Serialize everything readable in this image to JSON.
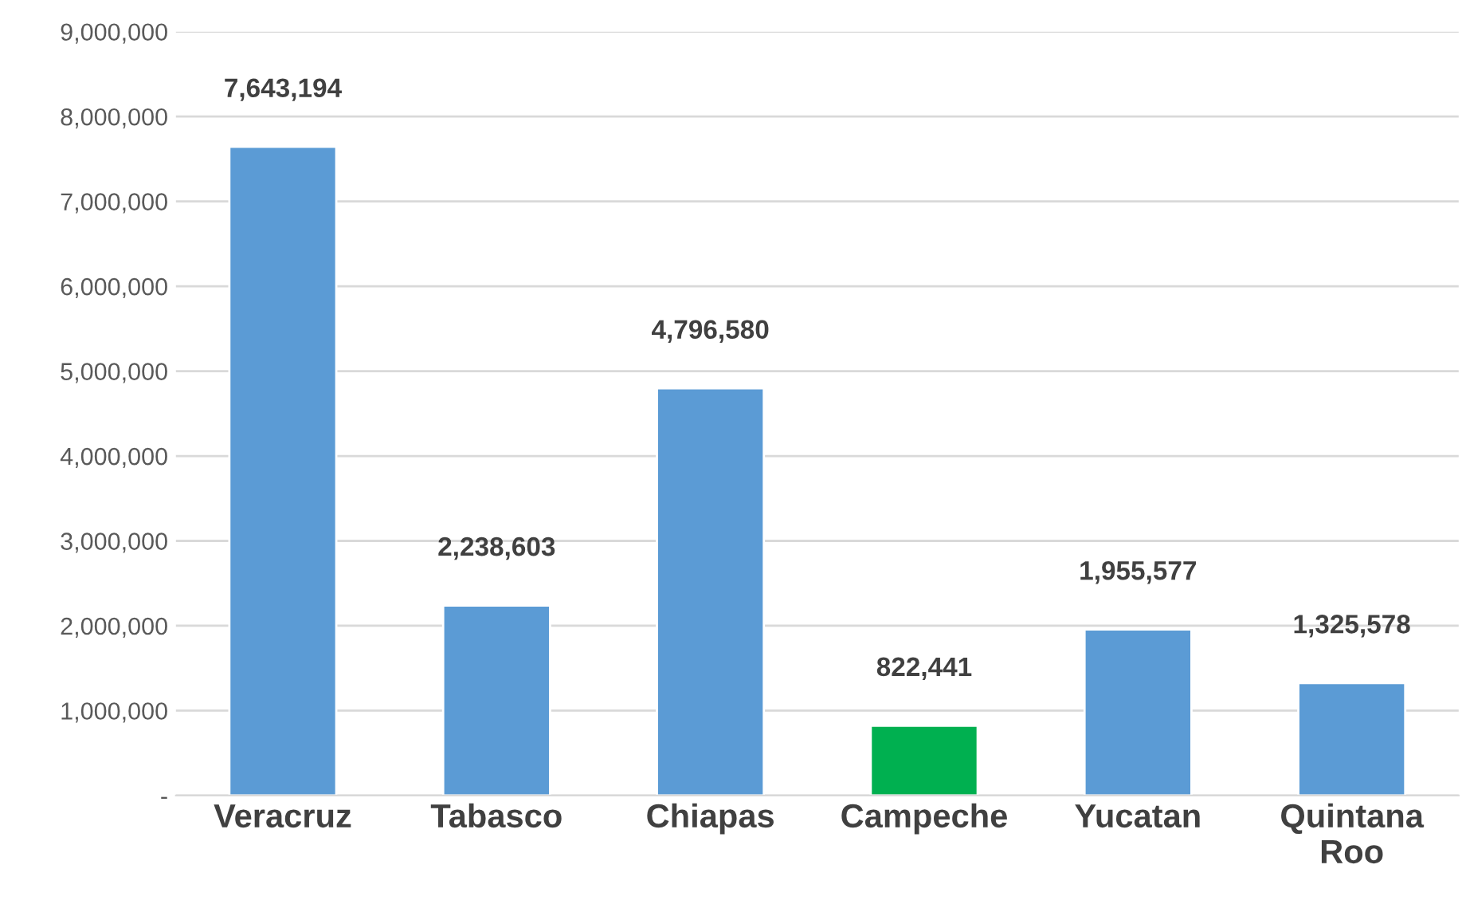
{
  "chart_data": {
    "type": "bar",
    "categories": [
      "Veracruz",
      "Tabasco",
      "Chiapas",
      "Campeche",
      "Yucatan",
      "Quintana\nRoo"
    ],
    "values": [
      7643194,
      2238603,
      4796580,
      822441,
      1955577,
      1325578
    ],
    "colors": [
      "#5b9bd5",
      "#5b9bd5",
      "#5b9bd5",
      "#00b050",
      "#5b9bd5",
      "#5b9bd5"
    ],
    "value_labels": [
      "7,643,194",
      "2,238,603",
      "4,796,580",
      "822,441",
      "1,955,577",
      "1,325,578"
    ],
    "ylim": [
      0,
      9000000
    ],
    "yticks": [
      {
        "value": 0,
        "label": "-"
      },
      {
        "value": 1000000,
        "label": "1,000,000"
      },
      {
        "value": 2000000,
        "label": "2,000,000"
      },
      {
        "value": 3000000,
        "label": "3,000,000"
      },
      {
        "value": 4000000,
        "label": "4,000,000"
      },
      {
        "value": 5000000,
        "label": "5,000,000"
      },
      {
        "value": 6000000,
        "label": "6,000,000"
      },
      {
        "value": 7000000,
        "label": "7,000,000"
      },
      {
        "value": 8000000,
        "label": "8,000,000"
      },
      {
        "value": 9000000,
        "label": "9,000,000"
      }
    ],
    "grid": "y",
    "legend": false
  }
}
